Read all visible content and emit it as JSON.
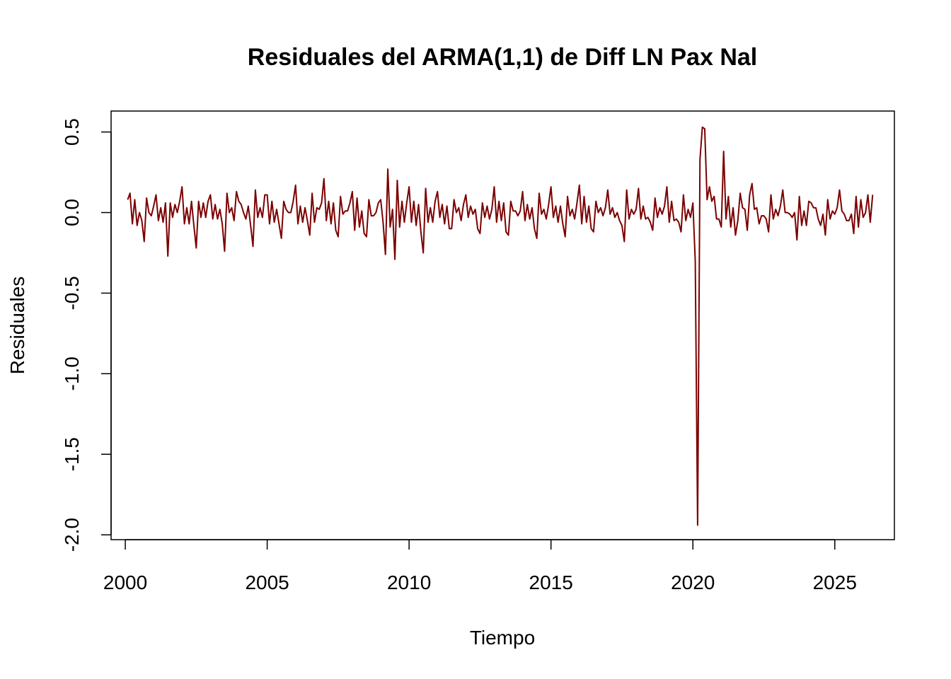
{
  "chart_data": {
    "type": "line",
    "title": "Residuales del ARMA(1,1) de Diff LN Pax Nal",
    "xlabel": "Tiempo",
    "ylabel": "Residuales",
    "xlim": [
      1999.5,
      2027.1
    ],
    "ylim": [
      -2.03,
      0.63
    ],
    "x_ticks": [
      2000,
      2005,
      2010,
      2015,
      2020,
      2025
    ],
    "x_tick_labels": [
      "2000",
      "2005",
      "2010",
      "2015",
      "2020",
      "2025"
    ],
    "y_ticks": [
      0.5,
      0.0,
      -0.5,
      -1.0,
      -1.5,
      -2.0
    ],
    "y_tick_labels": [
      "0.5",
      "0.0",
      "-0.5",
      "-1.0",
      "-1.5",
      "-2.0"
    ],
    "grid": false,
    "series_color": "#7B0000",
    "series": [
      {
        "start": 2000.0833,
        "step": 0.0833333,
        "values": [
          0.08,
          0.12,
          -0.07,
          0.08,
          -0.08,
          0.0,
          -0.05,
          -0.18,
          0.09,
          0.0,
          -0.02,
          0.04,
          0.11,
          -0.05,
          0.03,
          -0.06,
          0.06,
          -0.27,
          0.06,
          -0.03,
          0.05,
          0.0,
          0.07,
          0.16,
          -0.07,
          0.03,
          -0.07,
          0.07,
          -0.08,
          -0.22,
          0.07,
          -0.03,
          0.06,
          -0.03,
          0.07,
          0.11,
          -0.04,
          0.05,
          -0.04,
          0.02,
          -0.07,
          -0.24,
          0.12,
          0.0,
          0.03,
          -0.05,
          0.13,
          0.07,
          0.05,
          0.0,
          -0.04,
          0.04,
          -0.08,
          -0.21,
          0.14,
          -0.03,
          0.03,
          -0.03,
          0.11,
          0.11,
          -0.07,
          0.07,
          -0.06,
          0.02,
          -0.07,
          -0.16,
          0.07,
          0.02,
          0.0,
          0.0,
          0.07,
          0.17,
          -0.07,
          0.04,
          -0.06,
          0.03,
          -0.05,
          -0.14,
          0.12,
          -0.06,
          0.03,
          0.02,
          0.06,
          0.21,
          -0.05,
          0.07,
          -0.07,
          0.06,
          -0.11,
          -0.15,
          0.1,
          -0.01,
          0.01,
          0.01,
          0.06,
          0.13,
          -0.11,
          0.09,
          -0.09,
          0.01,
          -0.13,
          -0.15,
          0.08,
          -0.02,
          -0.02,
          0.0,
          0.06,
          0.08,
          -0.06,
          -0.26,
          0.27,
          -0.09,
          0.02,
          -0.29,
          0.2,
          -0.09,
          0.07,
          -0.06,
          0.06,
          0.16,
          -0.06,
          0.07,
          -0.08,
          0.05,
          -0.12,
          -0.25,
          0.15,
          -0.06,
          0.03,
          -0.06,
          0.07,
          0.13,
          -0.03,
          0.05,
          -0.07,
          0.04,
          -0.1,
          -0.1,
          0.08,
          0.0,
          0.03,
          -0.05,
          0.05,
          0.11,
          -0.03,
          0.04,
          -0.01,
          0.02,
          -0.1,
          -0.13,
          0.06,
          -0.03,
          0.04,
          -0.04,
          0.02,
          0.16,
          -0.06,
          0.07,
          -0.05,
          0.06,
          -0.12,
          -0.14,
          0.07,
          0.01,
          0.01,
          -0.02,
          0.01,
          0.13,
          -0.05,
          0.05,
          -0.04,
          0.03,
          -0.1,
          -0.16,
          0.12,
          -0.01,
          0.02,
          -0.04,
          0.05,
          0.16,
          -0.03,
          0.04,
          -0.06,
          0.04,
          -0.07,
          -0.15,
          0.1,
          -0.02,
          0.02,
          -0.04,
          0.06,
          0.17,
          -0.07,
          0.1,
          -0.06,
          0.04,
          -0.1,
          -0.12,
          0.07,
          0.0,
          0.03,
          -0.02,
          0.03,
          0.14,
          -0.01,
          0.03,
          -0.03,
          0.0,
          -0.05,
          -0.08,
          -0.18,
          0.14,
          -0.04,
          0.02,
          -0.01,
          0.02,
          0.15,
          -0.04,
          0.04,
          -0.04,
          -0.03,
          -0.06,
          -0.11,
          0.09,
          -0.03,
          0.03,
          -0.01,
          0.04,
          0.16,
          -0.06,
          0.07,
          -0.05,
          -0.04,
          -0.06,
          -0.12,
          0.11,
          -0.05,
          0.02,
          -0.03,
          0.06,
          -0.3,
          -1.94,
          0.33,
          0.53,
          0.52,
          0.08,
          0.16,
          0.07,
          0.1,
          -0.04,
          -0.04,
          -0.09,
          0.38,
          -0.04,
          0.1,
          -0.09,
          0.03,
          -0.14,
          -0.05,
          0.12,
          0.03,
          0.02,
          -0.11,
          0.11,
          0.18,
          0.02,
          0.03,
          -0.07,
          -0.02,
          -0.02,
          -0.04,
          -0.12,
          0.11,
          -0.04,
          0.02,
          -0.02,
          0.04,
          0.14,
          0.0,
          0.0,
          -0.01,
          -0.03,
          0.0,
          -0.17,
          0.1,
          -0.08,
          0.01,
          -0.08,
          0.07,
          0.06,
          0.03,
          0.03,
          -0.04,
          -0.08,
          -0.01,
          -0.14,
          0.08,
          -0.04,
          0.01,
          -0.01,
          0.03,
          0.14,
          0.01,
          -0.01,
          -0.05,
          -0.05,
          -0.01,
          -0.13,
          0.1,
          -0.09,
          0.08,
          -0.03,
          0.0,
          0.11,
          -0.06,
          0.11
        ]
      }
    ]
  }
}
